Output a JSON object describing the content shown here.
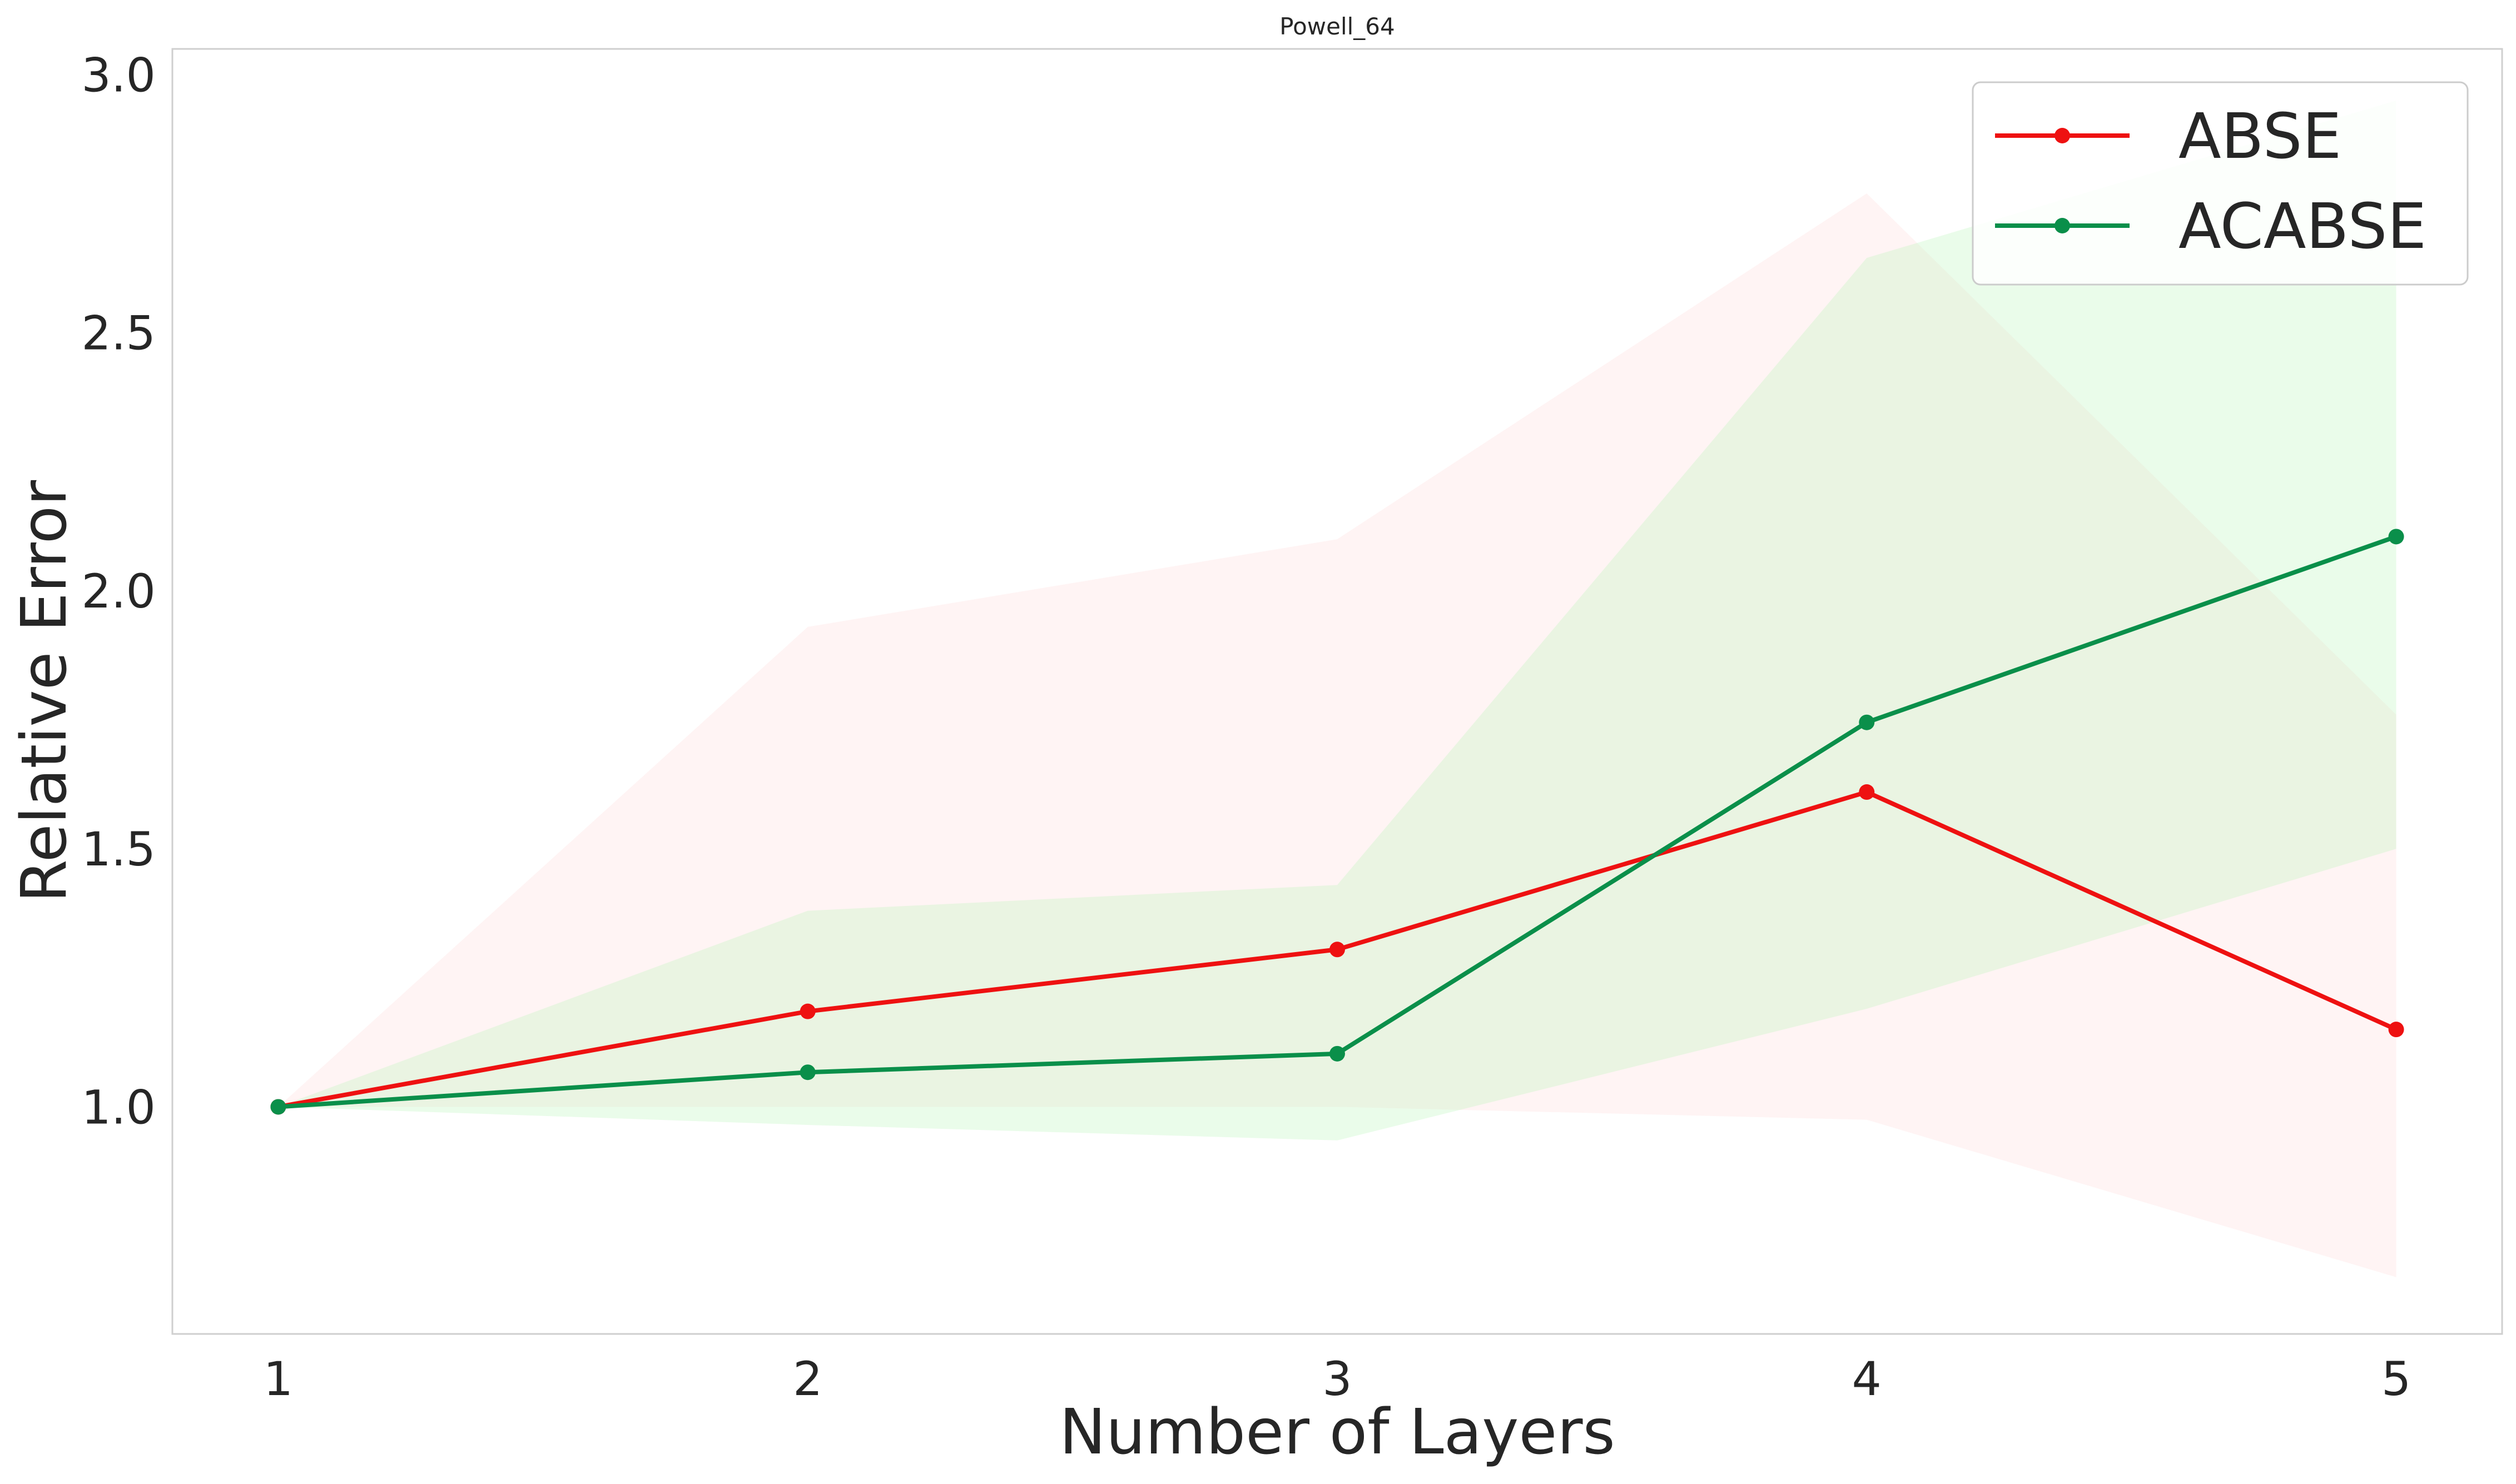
{
  "chart_data": {
    "type": "line",
    "title": "Powell_64",
    "xlabel": "Number of Layers",
    "ylabel": "Relative Error",
    "x": [
      1,
      2,
      3,
      4,
      5
    ],
    "x_ticks": [
      "1",
      "2",
      "3",
      "4",
      "5"
    ],
    "y_ticks": [
      1.0,
      1.5,
      2.0,
      2.5,
      3.0
    ],
    "y_tick_labels": [
      "1.0",
      "1.5",
      "2.0",
      "2.5",
      "3.0"
    ],
    "xlim": [
      0.8,
      5.2
    ],
    "ylim": [
      0.56,
      3.05
    ],
    "grid": false,
    "legend_position": "top-right",
    "series": [
      {
        "name": "ABSE",
        "color": "#ee1111",
        "band_color": "#ffd6d6",
        "values": [
          1.0,
          1.185,
          1.305,
          1.61,
          1.15
        ],
        "band_upper": [
          1.0,
          1.93,
          2.1,
          2.77,
          1.76
        ],
        "band_lower": [
          1.0,
          1.0,
          1.0,
          0.975,
          0.67
        ]
      },
      {
        "name": "ACABSE",
        "color": "#0a8f4a",
        "band_color": "#b8f5b8",
        "values": [
          1.0,
          1.067,
          1.103,
          1.745,
          2.105
        ],
        "band_upper": [
          1.0,
          1.38,
          1.43,
          2.645,
          2.95
        ],
        "band_lower": [
          1.0,
          0.965,
          0.935,
          1.19,
          1.5
        ]
      }
    ]
  }
}
